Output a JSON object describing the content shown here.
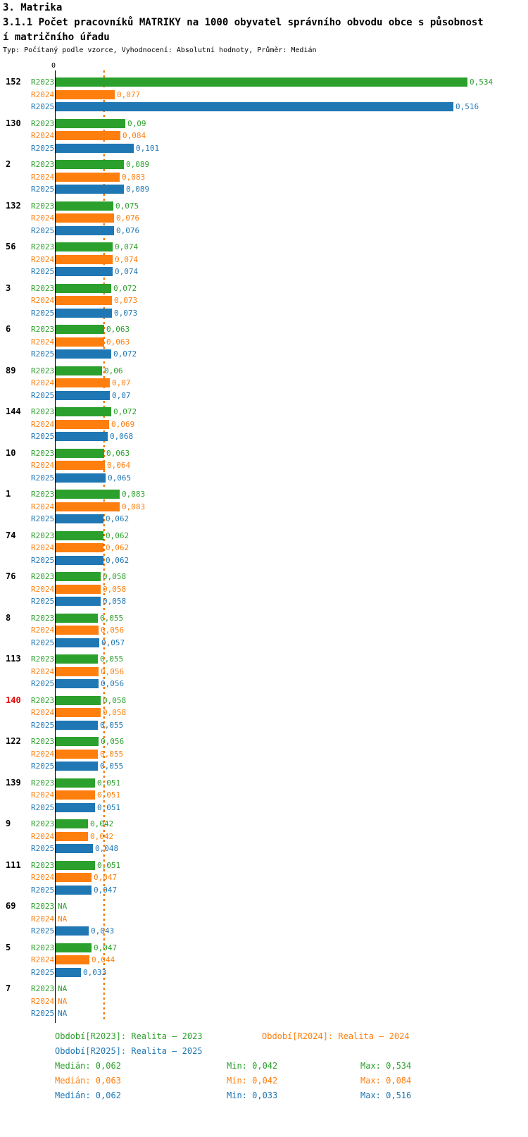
{
  "header": {
    "section_title": "3. Matrika",
    "title_line1": "3.1.1 Počet pracovníků MATRIKY na 1000 obyvatel správního obvodu obce s působnost",
    "title_line2": "í matričního úřadu",
    "meta": "Typ: Počítaný podle vzorce, Vyhodnocení: Absolutní hodnoty, Průměr: Medián"
  },
  "colors": {
    "r2023": "#2ca02c",
    "r2024": "#ff7f0e",
    "r2025": "#1f77b4",
    "highlight": "#e60000"
  },
  "chart_data": {
    "type": "bar",
    "orientation": "horizontal",
    "title": "3.1.1 Počet pracovníků MATRIKY na 1000 obyvatel správního obvodu obce s působností matričního úřadu",
    "subtitle": "Typ: Počítaný podle vzorce, Vyhodnocení: Absolutní hodnoty, Průměr: Medián",
    "series": [
      "R2023",
      "R2024",
      "R2025"
    ],
    "x_axis": {
      "zero_label": "0",
      "xlim": [
        0,
        0.6
      ]
    },
    "medians": {
      "R2023": 0.062,
      "R2024": 0.063,
      "R2025": 0.062
    },
    "groups": [
      {
        "id": "152",
        "highlight": false,
        "values": [
          0.534,
          0.077,
          0.516
        ],
        "value_labels": [
          "0,534",
          "0,077",
          "0,516"
        ]
      },
      {
        "id": "130",
        "highlight": false,
        "values": [
          0.09,
          0.084,
          0.101
        ],
        "value_labels": [
          "0,09",
          "0,084",
          "0,101"
        ]
      },
      {
        "id": "2",
        "highlight": false,
        "values": [
          0.089,
          0.083,
          0.089
        ],
        "value_labels": [
          "0,089",
          "0,083",
          "0,089"
        ]
      },
      {
        "id": "132",
        "highlight": false,
        "values": [
          0.075,
          0.076,
          0.076
        ],
        "value_labels": [
          "0,075",
          "0,076",
          "0,076"
        ]
      },
      {
        "id": "56",
        "highlight": false,
        "values": [
          0.074,
          0.074,
          0.074
        ],
        "value_labels": [
          "0,074",
          "0,074",
          "0,074"
        ]
      },
      {
        "id": "3",
        "highlight": false,
        "values": [
          0.072,
          0.073,
          0.073
        ],
        "value_labels": [
          "0,072",
          "0,073",
          "0,073"
        ]
      },
      {
        "id": "6",
        "highlight": false,
        "values": [
          0.063,
          0.063,
          0.072
        ],
        "value_labels": [
          "0,063",
          "0,063",
          "0,072"
        ]
      },
      {
        "id": "89",
        "highlight": false,
        "values": [
          0.06,
          0.07,
          0.07
        ],
        "value_labels": [
          "0,06",
          "0,07",
          "0,07"
        ]
      },
      {
        "id": "144",
        "highlight": false,
        "values": [
          0.072,
          0.069,
          0.068
        ],
        "value_labels": [
          "0,072",
          "0,069",
          "0,068"
        ]
      },
      {
        "id": "10",
        "highlight": false,
        "values": [
          0.063,
          0.064,
          0.065
        ],
        "value_labels": [
          "0,063",
          "0,064",
          "0,065"
        ]
      },
      {
        "id": "1",
        "highlight": false,
        "values": [
          0.083,
          0.083,
          0.062
        ],
        "value_labels": [
          "0,083",
          "0,083",
          "0,062"
        ]
      },
      {
        "id": "74",
        "highlight": false,
        "values": [
          0.062,
          0.062,
          0.062
        ],
        "value_labels": [
          "0,062",
          "0,062",
          "0,062"
        ]
      },
      {
        "id": "76",
        "highlight": false,
        "values": [
          0.058,
          0.058,
          0.058
        ],
        "value_labels": [
          "0,058",
          "0,058",
          "0,058"
        ]
      },
      {
        "id": "8",
        "highlight": false,
        "values": [
          0.055,
          0.056,
          0.057
        ],
        "value_labels": [
          "0,055",
          "0,056",
          "0,057"
        ]
      },
      {
        "id": "113",
        "highlight": false,
        "values": [
          0.055,
          0.056,
          0.056
        ],
        "value_labels": [
          "0,055",
          "0,056",
          "0,056"
        ]
      },
      {
        "id": "140",
        "highlight": true,
        "values": [
          0.058,
          0.058,
          0.055
        ],
        "value_labels": [
          "0,058",
          "0,058",
          "0,055"
        ]
      },
      {
        "id": "122",
        "highlight": false,
        "values": [
          0.056,
          0.055,
          0.055
        ],
        "value_labels": [
          "0,056",
          "0,055",
          "0,055"
        ]
      },
      {
        "id": "139",
        "highlight": false,
        "values": [
          0.051,
          0.051,
          0.051
        ],
        "value_labels": [
          "0,051",
          "0,051",
          "0,051"
        ]
      },
      {
        "id": "9",
        "highlight": false,
        "values": [
          0.042,
          0.042,
          0.048
        ],
        "value_labels": [
          "0,042",
          "0,042",
          "0,048"
        ]
      },
      {
        "id": "111",
        "highlight": false,
        "values": [
          0.051,
          0.047,
          0.047
        ],
        "value_labels": [
          "0,051",
          "0,047",
          "0,047"
        ]
      },
      {
        "id": "69",
        "highlight": false,
        "values": [
          null,
          null,
          0.043
        ],
        "value_labels": [
          "NA",
          "NA",
          "0,043"
        ]
      },
      {
        "id": "5",
        "highlight": false,
        "values": [
          0.047,
          0.044,
          0.033
        ],
        "value_labels": [
          "0,047",
          "0,044",
          "0,033"
        ]
      },
      {
        "id": "7",
        "highlight": false,
        "values": [
          null,
          null,
          null
        ],
        "value_labels": [
          "NA",
          "NA",
          "NA"
        ]
      }
    ]
  },
  "legend": {
    "items": [
      {
        "series": "R2023",
        "text": "Období[R2023]: Realita – 2023"
      },
      {
        "series": "R2024",
        "text": "Období[R2024]: Realita – 2024"
      },
      {
        "series": "R2025",
        "text": "Období[R2025]: Realita – 2025"
      }
    ]
  },
  "stats": {
    "rows": [
      {
        "series": "R2023",
        "median": "Medián: 0,062",
        "min": "Min: 0,042",
        "max": "Max: 0,534"
      },
      {
        "series": "R2024",
        "median": "Medián: 0,063",
        "min": "Min: 0,042",
        "max": "Max: 0,084"
      },
      {
        "series": "R2025",
        "median": "Medián: 0,062",
        "min": "Min: 0,033",
        "max": "Max: 0,516"
      }
    ]
  }
}
